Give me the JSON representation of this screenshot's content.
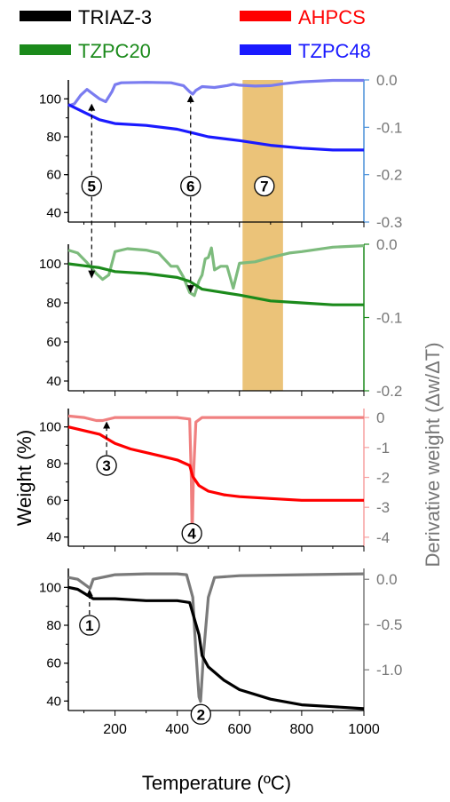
{
  "legend": [
    {
      "name": "TRIAZ-3",
      "color": "#000000"
    },
    {
      "name": "AHPCS",
      "color": "#ff0000"
    },
    {
      "name": "TZPC20",
      "color": "#1b8a1b"
    },
    {
      "name": "TZPC48",
      "color": "#1a1aff"
    }
  ],
  "chart_data": {
    "type": "line",
    "xlabel": "Temperature (ºC)",
    "ylabel_left": "Weight (%)",
    "ylabel_right": "Derivative weight (Δw/ΔT)",
    "xlim": [
      50,
      1000
    ],
    "xticks": [
      200,
      400,
      600,
      800,
      1000
    ],
    "shaded_band": {
      "x": [
        610,
        740
      ],
      "color": "#e8b962"
    },
    "panels": [
      {
        "name": "TZPC48",
        "color": "#1a1aff",
        "deriv_color": "#7a7cf0",
        "right_axis_color": "#4a90d9",
        "ylim_left": [
          35,
          110
        ],
        "yticks_left": [
          40,
          60,
          80,
          100
        ],
        "ylim_right": [
          -0.3,
          0.0
        ],
        "yticks_right": [
          0.0,
          -0.1,
          -0.2,
          -0.3
        ],
        "yticklabels_right": [
          "0.0",
          "-0.1",
          "-0.2",
          "-0.3"
        ],
        "weight": [
          [
            50,
            97
          ],
          [
            100,
            93
          ],
          [
            150,
            89
          ],
          [
            200,
            87
          ],
          [
            300,
            86
          ],
          [
            400,
            84
          ],
          [
            450,
            82
          ],
          [
            500,
            80
          ],
          [
            600,
            78
          ],
          [
            700,
            75.5
          ],
          [
            800,
            74
          ],
          [
            900,
            73
          ],
          [
            1000,
            73
          ]
        ],
        "derivative": [
          [
            50,
            -0.055
          ],
          [
            70,
            -0.05
          ],
          [
            90,
            -0.032
          ],
          [
            110,
            -0.02
          ],
          [
            130,
            -0.03
          ],
          [
            150,
            -0.04
          ],
          [
            170,
            -0.046
          ],
          [
            190,
            -0.025
          ],
          [
            200,
            -0.01
          ],
          [
            220,
            -0.006
          ],
          [
            300,
            -0.005
          ],
          [
            380,
            -0.006
          ],
          [
            420,
            -0.012
          ],
          [
            440,
            -0.025
          ],
          [
            450,
            -0.03
          ],
          [
            460,
            -0.022
          ],
          [
            480,
            -0.014
          ],
          [
            520,
            -0.016
          ],
          [
            560,
            -0.012
          ],
          [
            580,
            -0.009
          ],
          [
            600,
            -0.011
          ],
          [
            650,
            -0.013
          ],
          [
            700,
            -0.012
          ],
          [
            740,
            -0.008
          ],
          [
            800,
            -0.004
          ],
          [
            900,
            -0.001
          ],
          [
            1000,
            -0.001
          ]
        ],
        "markers": [
          {
            "label": "5",
            "x": 125,
            "y_left": 54,
            "arrow_x": 125,
            "arrow_y_right": -0.048
          },
          {
            "label": "6",
            "x": 443,
            "y_left": 54,
            "arrow_x": 443,
            "arrow_y_right": -0.03
          },
          {
            "label": "7",
            "x": 680,
            "y_left": 54
          }
        ]
      },
      {
        "name": "TZPC20",
        "color": "#1b8a1b",
        "deriv_color": "#7dbb7d",
        "right_axis_color": "#1b8a1b",
        "ylim_left": [
          35,
          110
        ],
        "yticks_left": [
          40,
          60,
          80,
          100
        ],
        "ylim_right": [
          -0.2,
          0.0
        ],
        "yticks_right": [
          0.0,
          -0.1,
          -0.2
        ],
        "yticklabels_right": [
          "0.0",
          "-0.1",
          "-0.2"
        ],
        "weight": [
          [
            50,
            100
          ],
          [
            100,
            99
          ],
          [
            150,
            98
          ],
          [
            200,
            96
          ],
          [
            300,
            95
          ],
          [
            400,
            93
          ],
          [
            440,
            91
          ],
          [
            480,
            87
          ],
          [
            520,
            86
          ],
          [
            600,
            84
          ],
          [
            700,
            81
          ],
          [
            800,
            80
          ],
          [
            900,
            79
          ],
          [
            1000,
            79
          ]
        ],
        "derivative": [
          [
            50,
            -0.008
          ],
          [
            80,
            -0.012
          ],
          [
            110,
            -0.025
          ],
          [
            140,
            -0.04
          ],
          [
            160,
            -0.048
          ],
          [
            180,
            -0.042
          ],
          [
            200,
            -0.01
          ],
          [
            240,
            -0.006
          ],
          [
            300,
            -0.008
          ],
          [
            340,
            -0.012
          ],
          [
            380,
            -0.03
          ],
          [
            400,
            -0.03
          ],
          [
            420,
            -0.045
          ],
          [
            440,
            -0.066
          ],
          [
            455,
            -0.07
          ],
          [
            470,
            -0.05
          ],
          [
            480,
            -0.042
          ],
          [
            490,
            -0.02
          ],
          [
            500,
            -0.018
          ],
          [
            510,
            -0.005
          ],
          [
            520,
            -0.035
          ],
          [
            540,
            -0.03
          ],
          [
            560,
            -0.03
          ],
          [
            580,
            -0.06
          ],
          [
            600,
            -0.026
          ],
          [
            650,
            -0.024
          ],
          [
            700,
            -0.018
          ],
          [
            760,
            -0.012
          ],
          [
            800,
            -0.01
          ],
          [
            900,
            -0.004
          ],
          [
            1000,
            -0.002
          ]
        ],
        "markers": []
      },
      {
        "name": "AHPCS",
        "color": "#ff0000",
        "deriv_color": "#f08080",
        "right_axis_color": "#f7a0a0",
        "ylim_left": [
          35,
          110
        ],
        "yticks_left": [
          40,
          60,
          80,
          100
        ],
        "ylim_right": [
          -4.3,
          0.3
        ],
        "yticks_right": [
          0,
          -1,
          -2,
          -3,
          -4
        ],
        "yticklabels_right": [
          "0",
          "-1",
          "-2",
          "-3",
          "-4"
        ],
        "weight": [
          [
            50,
            100
          ],
          [
            100,
            98
          ],
          [
            150,
            96
          ],
          [
            200,
            91
          ],
          [
            250,
            88
          ],
          [
            300,
            86
          ],
          [
            350,
            84
          ],
          [
            400,
            82
          ],
          [
            440,
            79
          ],
          [
            450,
            73
          ],
          [
            470,
            68
          ],
          [
            500,
            65
          ],
          [
            550,
            63
          ],
          [
            600,
            62
          ],
          [
            700,
            61
          ],
          [
            800,
            60
          ],
          [
            900,
            60
          ],
          [
            1000,
            60
          ]
        ],
        "derivative": [
          [
            50,
            0.05
          ],
          [
            100,
            0.0
          ],
          [
            140,
            -0.1
          ],
          [
            160,
            -0.1
          ],
          [
            200,
            0.0
          ],
          [
            300,
            0.0
          ],
          [
            400,
            0.0
          ],
          [
            440,
            -0.05
          ],
          [
            445,
            -2.0
          ],
          [
            448,
            -4.0
          ],
          [
            452,
            -2.0
          ],
          [
            460,
            -0.15
          ],
          [
            480,
            0.0
          ],
          [
            600,
            0.0
          ],
          [
            800,
            0.0
          ],
          [
            1000,
            0.0
          ]
        ],
        "markers": [
          {
            "label": "3",
            "x": 173,
            "y_left": 79,
            "arrow_x": 173,
            "arrow_y_right": -0.1
          },
          {
            "label": "4",
            "x": 447,
            "y_left": 42
          }
        ]
      },
      {
        "name": "TRIAZ-3",
        "color": "#000000",
        "deriv_color": "#7a7a7a",
        "right_axis_color": "#7a7a7a",
        "ylim_left": [
          35,
          110
        ],
        "yticks_left": [
          40,
          60,
          80,
          100
        ],
        "ylim_right": [
          -1.45,
          0.12
        ],
        "yticks_right": [
          0.0,
          -0.5,
          -1.0
        ],
        "yticklabels_right": [
          "0.0",
          "-0.5",
          "-1.0"
        ],
        "weight": [
          [
            50,
            100
          ],
          [
            80,
            99
          ],
          [
            100,
            97
          ],
          [
            130,
            94
          ],
          [
            200,
            94
          ],
          [
            300,
            93
          ],
          [
            400,
            93
          ],
          [
            440,
            92
          ],
          [
            470,
            75
          ],
          [
            480,
            64
          ],
          [
            500,
            58
          ],
          [
            550,
            51
          ],
          [
            600,
            46
          ],
          [
            700,
            41
          ],
          [
            800,
            38
          ],
          [
            900,
            37
          ],
          [
            1000,
            36
          ]
        ],
        "derivative": [
          [
            50,
            0.02
          ],
          [
            80,
            0.0
          ],
          [
            100,
            -0.05
          ],
          [
            120,
            -0.1
          ],
          [
            130,
            0.0
          ],
          [
            200,
            0.05
          ],
          [
            300,
            0.06
          ],
          [
            400,
            0.06
          ],
          [
            430,
            0.05
          ],
          [
            450,
            -0.2
          ],
          [
            460,
            -0.8
          ],
          [
            470,
            -1.3
          ],
          [
            475,
            -1.35
          ],
          [
            485,
            -0.8
          ],
          [
            500,
            -0.2
          ],
          [
            520,
            0.02
          ],
          [
            600,
            0.04
          ],
          [
            800,
            0.05
          ],
          [
            1000,
            0.06
          ]
        ],
        "markers": [
          {
            "label": "1",
            "x": 118,
            "y_left": 80,
            "arrow_x": 118,
            "arrow_y_right": -0.1
          },
          {
            "label": "2",
            "x": 476,
            "y_left": 33
          }
        ]
      }
    ]
  }
}
